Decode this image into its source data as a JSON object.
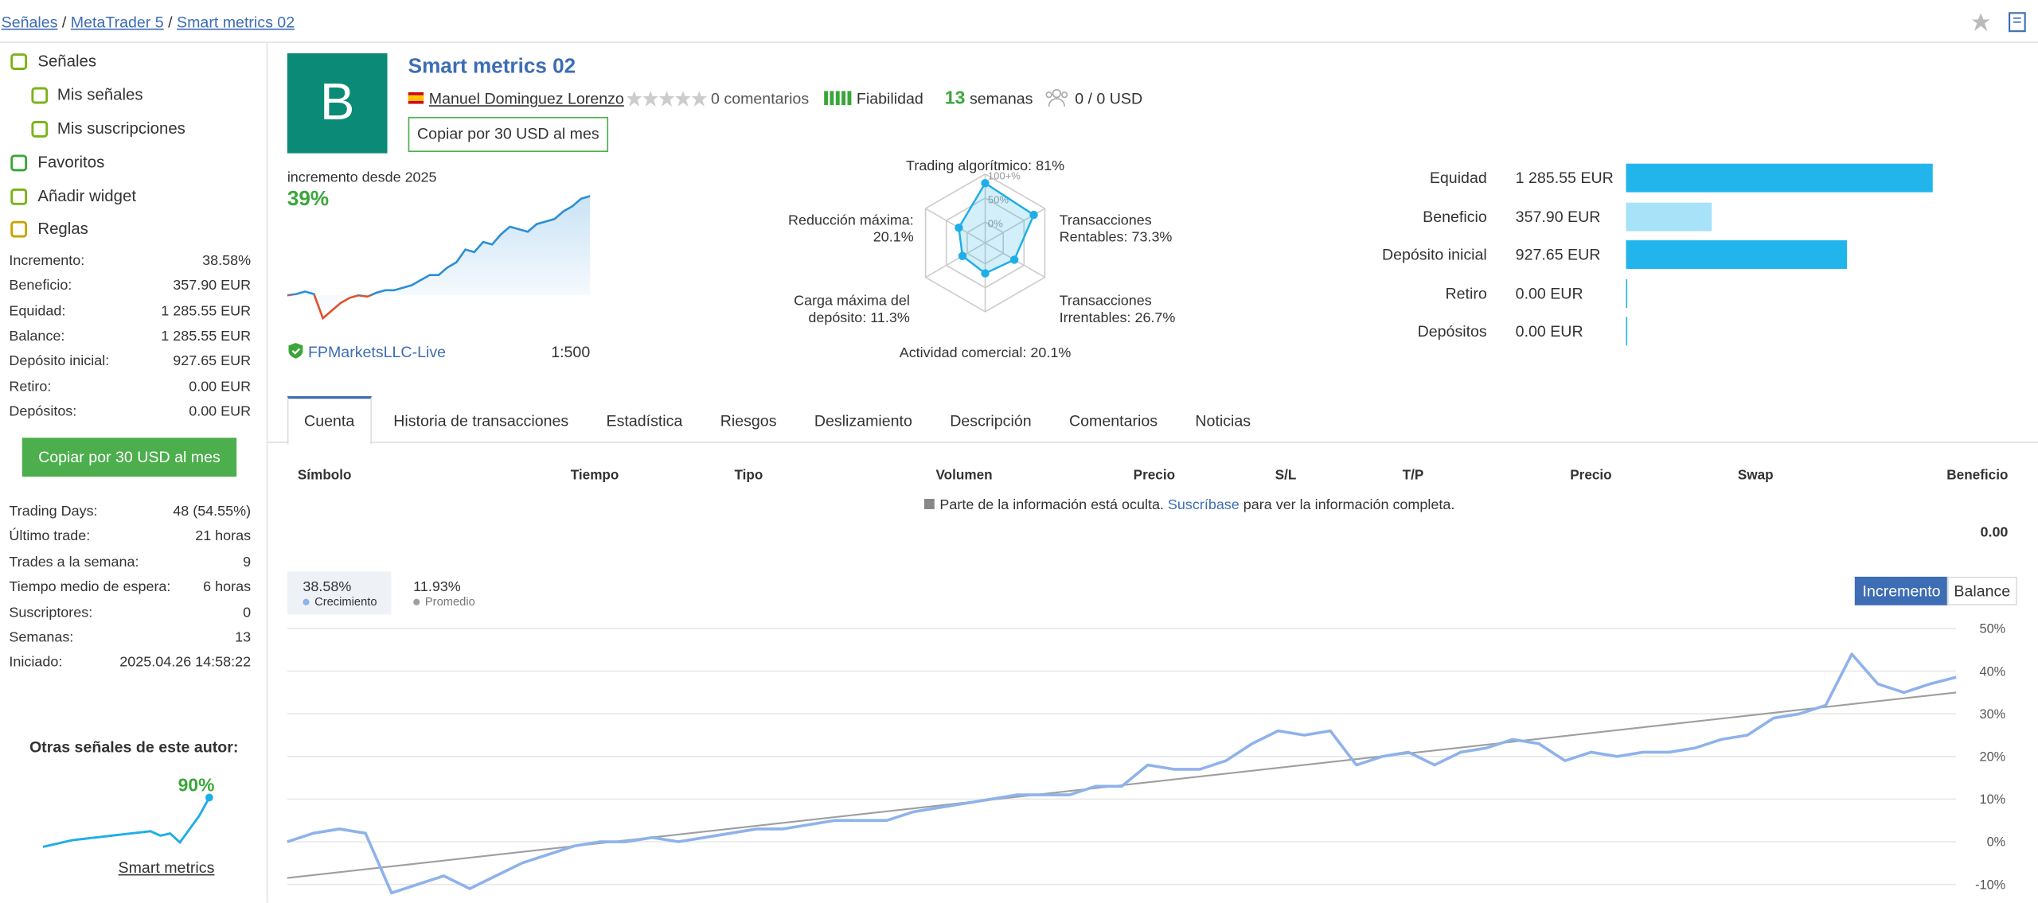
{
  "breadcrumb": [
    "Señales",
    "MetaTrader 5",
    "Smart metrics 02"
  ],
  "sidebar": {
    "menu": [
      "Señales",
      "Mis señales",
      "Mis suscripciones",
      "Favoritos",
      "Añadir widget",
      "Reglas"
    ],
    "stats": [
      {
        "label": "Incremento:",
        "value": "38.58%"
      },
      {
        "label": "Beneficio:",
        "value": "357.90 EUR"
      },
      {
        "label": "Equidad:",
        "value": "1 285.55 EUR"
      },
      {
        "label": "Balance:",
        "value": "1 285.55 EUR"
      },
      {
        "label": "Depósito inicial:",
        "value": "927.65 EUR"
      },
      {
        "label": "Retiro:",
        "value": "0.00 EUR"
      },
      {
        "label": "Depósitos:",
        "value": "0.00 EUR"
      }
    ],
    "copy_button": "Copiar por 30 USD al mes",
    "info": [
      {
        "label": "Trading Days:",
        "value": "48 (54.55%)"
      },
      {
        "label": "Último trade:",
        "value": "21 horas"
      },
      {
        "label": "Trades a la semana:",
        "value": "9"
      },
      {
        "label": "Tiempo medio de espera:",
        "value": "6 horas"
      },
      {
        "label": "Suscriptores:",
        "value": "0"
      },
      {
        "label": "Semanas:",
        "value": "13"
      },
      {
        "label": "Iniciado:",
        "value": "2025.04.26 14:58:22"
      }
    ],
    "other_signal": {
      "title": "Otras señales de este autor:",
      "growth": "90%",
      "name": "Smart metrics",
      "values": [
        0,
        1,
        2,
        3,
        3.5,
        4,
        4.5,
        5,
        5.5,
        6,
        6.5,
        7,
        5,
        6,
        2,
        8,
        14,
        22
      ]
    }
  },
  "header": {
    "avatar": "B",
    "title": "Smart metrics 02",
    "author": "Manuel Dominguez Lorenzo",
    "comments": "0 comentarios",
    "reliability": "Fiabilidad",
    "weeks": "13",
    "weeks_label": "semanas",
    "subscribers": "0 / 0 USD",
    "copy_button": "Copiar por 30 USD al mes"
  },
  "mini_chart": {
    "label": "incremento desde 2025",
    "value": "39%",
    "broker": "FPMarketsLLC-Live",
    "leverage": "1:500",
    "color": "#2b8fd6",
    "negative_color": "#e0502a",
    "values": [
      0,
      0.5,
      1.5,
      0.5,
      -9,
      -6,
      -3,
      -1,
      0,
      -0.5,
      1,
      2,
      2,
      3,
      4,
      6,
      8,
      8,
      11,
      13,
      18,
      17,
      21,
      20,
      24,
      27,
      26,
      25,
      28,
      29,
      30,
      33,
      35,
      38,
      39
    ]
  },
  "radar": {
    "color": "#1eaee8",
    "axes": [
      {
        "name": "Trading algorítmico:",
        "value": 81,
        "value_label": "81%"
      },
      {
        "name": "Transacciones Rentables:",
        "value": 73.3,
        "value_label": "73.3%"
      },
      {
        "name": "Transacciones Irrentables:",
        "value": 26.7,
        "value_label": "26.7%"
      },
      {
        "name": "Actividad comercial:",
        "value": 20.1,
        "value_label": "20.1%"
      },
      {
        "name": "Carga máxima del depósito:",
        "value": 11.3,
        "value_label": "11.3%"
      },
      {
        "name": "Reducción máxima:",
        "value": 20.1,
        "value_label": "20.1%"
      }
    ],
    "ticks": [
      {
        "value": 100,
        "label": "100+%"
      },
      {
        "value": 50,
        "label": "50%"
      },
      {
        "value": 0,
        "label": "0%"
      }
    ]
  },
  "bars": {
    "categories": [
      "Equidad",
      "Beneficio",
      "Depósito inicial",
      "Retiro",
      "Depósitos"
    ],
    "values": [
      1285.55,
      357.9,
      927.65,
      0,
      0
    ],
    "value_labels": [
      "1 285.55 EUR",
      "357.90 EUR",
      "927.65 EUR",
      "0.00 EUR",
      "0.00 EUR"
    ],
    "colors": [
      "#22b5ec",
      "#a8e2f8",
      "#22b5ec",
      "#22b5ec",
      "#22b5ec"
    ]
  },
  "tabs": [
    "Cuenta",
    "Historia de transacciones",
    "Estadística",
    "Riesgos",
    "Deslizamiento",
    "Descripción",
    "Comentarios",
    "Noticias"
  ],
  "table": {
    "columns": [
      "Símbolo",
      "Tiempo",
      "Tipo",
      "Volumen",
      "Precio",
      "S/L",
      "T/P",
      "Precio",
      "Swap",
      "Beneficio"
    ],
    "note": {
      "before": "Parte de la información está oculta.",
      "link": "Suscríbase",
      "after": "para ver la información completa."
    },
    "total": "0.00"
  },
  "chart_data": {
    "type": "line",
    "buttons": [
      "Incremento",
      "Balance"
    ],
    "series": [
      {
        "name": "Crecimiento",
        "label": "38.58%",
        "color": "#8fb2ea",
        "values": [
          0,
          2,
          3,
          2,
          -12,
          -10,
          -8,
          -11,
          -8,
          -5,
          -3,
          -1,
          0,
          0,
          1,
          0,
          1,
          2,
          3,
          3,
          4,
          5,
          5,
          5,
          7,
          8,
          9,
          10,
          11,
          11,
          11,
          13,
          13,
          18,
          17,
          17,
          19,
          23,
          26,
          25,
          26,
          18,
          20,
          21,
          18,
          21,
          22,
          24,
          23,
          19,
          21,
          20,
          21,
          21,
          22,
          24,
          25,
          29,
          30,
          32,
          44,
          37,
          35,
          37,
          38.58
        ]
      },
      {
        "name": "Promedio",
        "label": "11.93%",
        "color": "#9e9e9e",
        "values": [
          -8.5,
          35
        ]
      }
    ],
    "ylim": [
      -14.3,
      52.7
    ],
    "yticks": [
      {
        "value": 50,
        "label": "50%"
      },
      {
        "value": 40,
        "label": "40%"
      },
      {
        "value": 30,
        "label": "30%"
      },
      {
        "value": 20,
        "label": "20%"
      },
      {
        "value": 10,
        "label": "10%"
      },
      {
        "value": 0,
        "label": "0%"
      },
      {
        "value": -10,
        "label": "-10%"
      }
    ],
    "grid": true
  }
}
